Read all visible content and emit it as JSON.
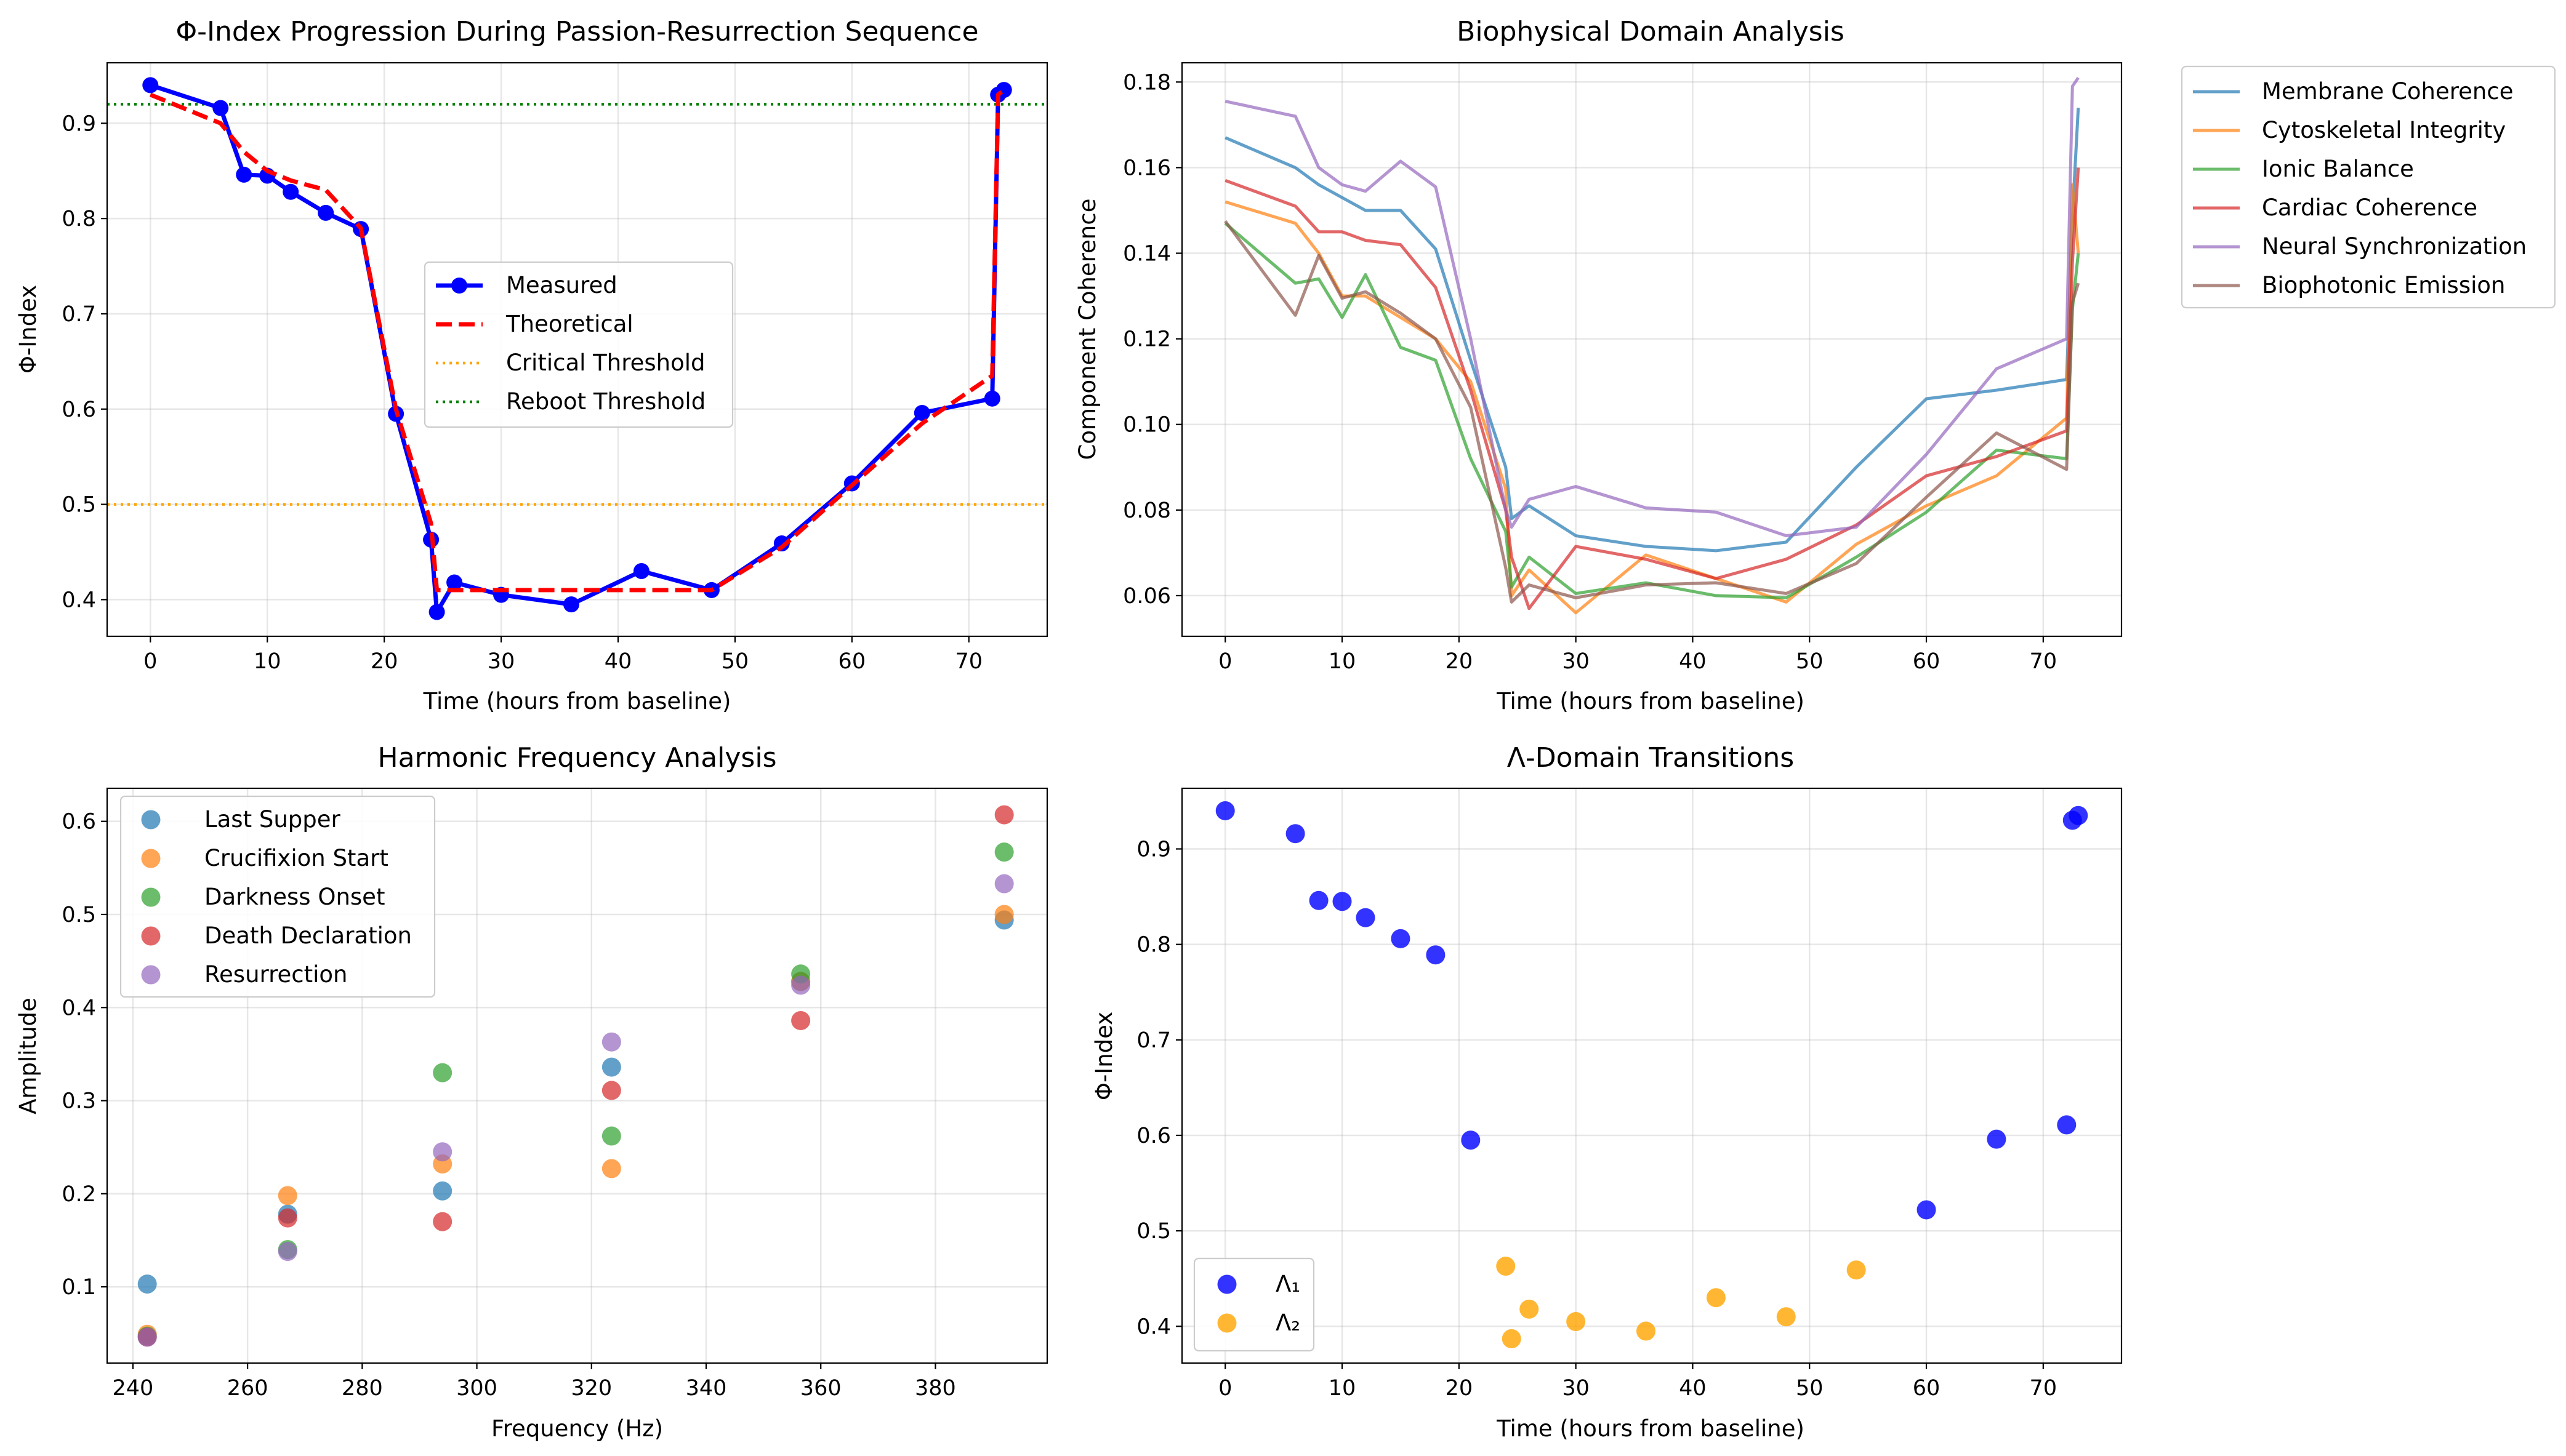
{
  "colors": {
    "tab_blue": "#1f77b4",
    "tab_orange": "#ff7f0e",
    "tab_green": "#2ca02c",
    "tab_red": "#d62728",
    "tab_purple": "#9467bd",
    "tab_brown": "#8c564b",
    "blue": "#0000ff",
    "red": "#ff0000",
    "orange": "#ffa500",
    "green": "#008000"
  },
  "chart_data": [
    {
      "type": "line",
      "title": "Φ-Index Progression During Passion-Resurrection Sequence",
      "xlabel": "Time (hours from baseline)",
      "ylabel": "Φ-Index",
      "xlim": [
        -3.7,
        76.7
      ],
      "ylim": [
        0.3615,
        0.9635
      ],
      "xticks": [
        0,
        10,
        20,
        30,
        40,
        50,
        60,
        70
      ],
      "yticks": [
        0.4,
        0.5,
        0.6,
        0.7,
        0.8,
        0.9
      ],
      "grid": true,
      "legend_position": "center-right",
      "series": [
        {
          "name": "Measured",
          "style": "solid-marker",
          "color": "#0000ff",
          "x": [
            0,
            6,
            8,
            10,
            12,
            15,
            18,
            21,
            24,
            24.5,
            26,
            30,
            36,
            42,
            48,
            54,
            60,
            66,
            72,
            72.5,
            73
          ],
          "y": [
            0.94,
            0.916,
            0.846,
            0.845,
            0.828,
            0.806,
            0.789,
            0.595,
            0.463,
            0.387,
            0.418,
            0.405,
            0.395,
            0.43,
            0.41,
            0.459,
            0.522,
            0.596,
            0.611,
            0.93,
            0.935
          ]
        },
        {
          "name": "Theoretical",
          "style": "dashed",
          "color": "#ff0000",
          "x": [
            0,
            6,
            8,
            10,
            12,
            15,
            18,
            21,
            24,
            24.5,
            26,
            30,
            36,
            42,
            48,
            54,
            60,
            66,
            72,
            72.5,
            73
          ],
          "y": [
            0.93,
            0.9,
            0.87,
            0.85,
            0.84,
            0.83,
            0.79,
            0.6,
            0.48,
            0.41,
            0.41,
            0.41,
            0.41,
            0.41,
            0.41,
            0.455,
            0.52,
            0.585,
            0.635,
            0.93,
            0.935
          ]
        },
        {
          "name": "Critical Threshold",
          "style": "dotted-hline",
          "color": "#ffa500",
          "y": 0.5
        },
        {
          "name": "Reboot Threshold",
          "style": "dotted-hline",
          "color": "#008000",
          "y": 0.92
        }
      ]
    },
    {
      "type": "line",
      "title": "Biophysical Domain Analysis",
      "xlabel": "Time (hours from baseline)",
      "ylabel": "Component Coherence",
      "xlim": [
        -3.7,
        76.7
      ],
      "ylim": [
        0.0505,
        0.1845
      ],
      "xticks": [
        0,
        10,
        20,
        30,
        40,
        50,
        60,
        70
      ],
      "yticks": [
        0.06,
        0.08,
        0.1,
        0.12,
        0.14,
        0.16,
        0.18
      ],
      "grid": true,
      "legend_position": "outside-upper-right",
      "x": [
        0,
        6,
        8,
        10,
        12,
        15,
        18,
        21,
        24,
        24.5,
        26,
        30,
        36,
        42,
        48,
        54,
        60,
        66,
        72,
        72.5,
        73
      ],
      "series": [
        {
          "name": "Membrane Coherence",
          "color": "#1f77b4",
          "values": [
            0.167,
            0.16,
            0.156,
            0.153,
            0.15,
            0.15,
            0.141,
            0.115,
            0.09,
            0.078,
            0.081,
            0.074,
            0.0715,
            0.0705,
            0.0725,
            0.09,
            0.106,
            0.108,
            0.1105,
            0.1485,
            0.174
          ]
        },
        {
          "name": "Cytoskeletal Integrity",
          "color": "#ff7f0e",
          "values": [
            0.152,
            0.147,
            0.14,
            0.13,
            0.13,
            0.125,
            0.12,
            0.11,
            0.085,
            0.06,
            0.066,
            0.056,
            0.0695,
            0.064,
            0.0585,
            0.072,
            0.081,
            0.088,
            0.1015,
            0.156,
            0.14
          ]
        },
        {
          "name": "Ionic Balance",
          "color": "#2ca02c",
          "values": [
            0.147,
            0.133,
            0.134,
            0.125,
            0.135,
            0.118,
            0.115,
            0.092,
            0.075,
            0.062,
            0.069,
            0.0605,
            0.063,
            0.06,
            0.0595,
            0.069,
            0.0795,
            0.094,
            0.092,
            0.127,
            0.14
          ]
        },
        {
          "name": "Cardiac Coherence",
          "color": "#d62728",
          "values": [
            0.157,
            0.151,
            0.145,
            0.145,
            0.143,
            0.142,
            0.132,
            0.108,
            0.08,
            0.069,
            0.057,
            0.0715,
            0.0685,
            0.064,
            0.0685,
            0.0765,
            0.088,
            0.0925,
            0.0985,
            0.138,
            0.16
          ]
        },
        {
          "name": "Neural Synchronization",
          "color": "#9467bd",
          "values": [
            0.1755,
            0.172,
            0.16,
            0.156,
            0.1545,
            0.1615,
            0.1555,
            0.12,
            0.08,
            0.076,
            0.0825,
            0.0855,
            0.0805,
            0.0795,
            0.074,
            0.076,
            0.093,
            0.113,
            0.12,
            0.179,
            0.181
          ]
        },
        {
          "name": "Biophotonic Emission",
          "color": "#8c564b",
          "values": [
            0.1475,
            0.1255,
            0.1395,
            0.1295,
            0.131,
            0.126,
            0.12,
            0.104,
            0.0665,
            0.0585,
            0.0625,
            0.0595,
            0.0625,
            0.063,
            0.0605,
            0.0675,
            0.083,
            0.098,
            0.0895,
            0.1285,
            0.133
          ]
        }
      ]
    },
    {
      "type": "scatter",
      "title": "Harmonic Frequency Analysis",
      "xlabel": "Frequency (Hz)",
      "ylabel": "Amplitude",
      "xlim": [
        235.5,
        399.5
      ],
      "ylim": [
        0.0181,
        0.6355
      ],
      "xticks": [
        240,
        260,
        280,
        300,
        320,
        340,
        360,
        380
      ],
      "yticks": [
        0.1,
        0.2,
        0.3,
        0.4,
        0.5,
        0.6
      ],
      "grid": true,
      "legend_position": "upper-left",
      "x": [
        242.5,
        267,
        294,
        323.5,
        356.5,
        392
      ],
      "series": [
        {
          "name": "Last Supper",
          "color": "#1f77b4",
          "values": [
            0.103,
            0.178,
            0.203,
            0.336,
            0.428,
            0.494
          ]
        },
        {
          "name": "Crucifixion Start",
          "color": "#ff7f0e",
          "values": [
            0.049,
            0.198,
            0.232,
            0.227,
            0.428,
            0.5
          ]
        },
        {
          "name": "Darkness Onset",
          "color": "#2ca02c",
          "values": [
            0.047,
            0.14,
            0.33,
            0.262,
            0.436,
            0.567
          ]
        },
        {
          "name": "Death Declaration",
          "color": "#d62728",
          "values": [
            0.046,
            0.174,
            0.17,
            0.311,
            0.386,
            0.607
          ]
        },
        {
          "name": "Resurrection",
          "color": "#9467bd",
          "values": [
            0.046,
            0.138,
            0.245,
            0.363,
            0.424,
            0.533
          ]
        }
      ]
    },
    {
      "type": "scatter",
      "title": "Λ-Domain Transitions",
      "xlabel": "Time (hours from baseline)",
      "ylabel": "Φ-Index",
      "xlim": [
        -3.7,
        76.7
      ],
      "ylim": [
        0.3615,
        0.9635
      ],
      "xticks": [
        0,
        10,
        20,
        30,
        40,
        50,
        60,
        70
      ],
      "yticks": [
        0.4,
        0.5,
        0.6,
        0.7,
        0.8,
        0.9
      ],
      "grid": true,
      "legend_position": "lower-left",
      "series": [
        {
          "name": "Λ₁",
          "color": "#0000ff",
          "x": [
            0,
            6,
            8,
            10,
            12,
            15,
            18,
            21,
            60,
            66,
            72,
            72.5,
            73
          ],
          "y": [
            0.94,
            0.916,
            0.846,
            0.845,
            0.828,
            0.806,
            0.789,
            0.595,
            0.522,
            0.596,
            0.611,
            0.93,
            0.935
          ]
        },
        {
          "name": "Λ₂",
          "color": "#ffa500",
          "x": [
            24,
            24.5,
            26,
            30,
            36,
            42,
            48,
            54
          ],
          "y": [
            0.463,
            0.387,
            0.418,
            0.405,
            0.395,
            0.43,
            0.41,
            0.459
          ]
        }
      ]
    }
  ]
}
